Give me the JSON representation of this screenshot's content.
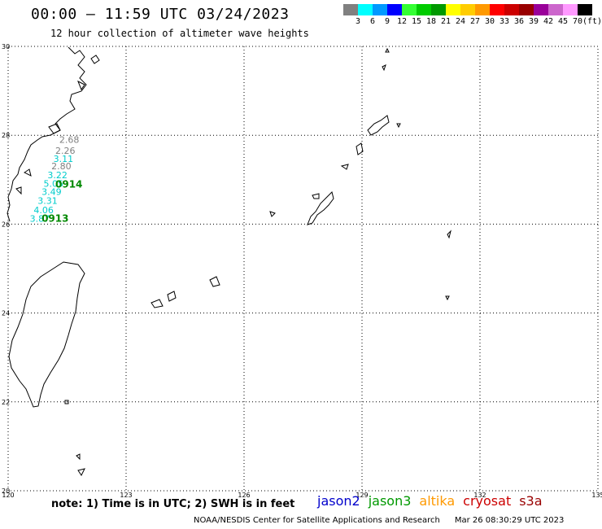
{
  "header": {
    "title": "00:00 – 11:59 UTC 03/24/2023",
    "subtitle": "12 hour collection of altimeter wave heights"
  },
  "colorbar": {
    "colors": [
      "#808080",
      "#00ffff",
      "#0099ff",
      "#0000ff",
      "#33ff33",
      "#00cc00",
      "#009900",
      "#ffff00",
      "#ffcc00",
      "#ff9900",
      "#ff0000",
      "#cc0000",
      "#990000",
      "#990099",
      "#cc66cc",
      "#ff99ff",
      "#000000"
    ],
    "labels": [
      "3",
      "6",
      "9",
      "12",
      "15",
      "18",
      "21",
      "24",
      "27",
      "30",
      "33",
      "36",
      "39",
      "42",
      "45",
      "70",
      "(ft)"
    ]
  },
  "map": {
    "lon_range": [
      120,
      135
    ],
    "lat_range": [
      20,
      30
    ],
    "lon_ticks": [
      "120",
      "123",
      "126",
      "129",
      "132",
      "135"
    ],
    "lat_ticks": [
      "20",
      "22",
      "24",
      "26",
      "28",
      "30"
    ],
    "grid": true
  },
  "wave_heights": [
    {
      "label": "2.68",
      "lon": 121.3,
      "lat": 27.83,
      "color": "#808080"
    },
    {
      "label": "2.26",
      "lon": 121.2,
      "lat": 27.58,
      "color": "#808080"
    },
    {
      "label": "3.11",
      "lon": 121.15,
      "lat": 27.4,
      "color": "#00cccc"
    },
    {
      "label": "2.80",
      "lon": 121.1,
      "lat": 27.23,
      "color": "#808080"
    },
    {
      "label": "3.22",
      "lon": 121.0,
      "lat": 27.03,
      "color": "#00cccc"
    },
    {
      "label": "5.05",
      "lon": 120.9,
      "lat": 26.84,
      "color": "#00cccc"
    },
    {
      "label": "3.49",
      "lon": 120.85,
      "lat": 26.66,
      "color": "#00cccc"
    },
    {
      "label": "3.31",
      "lon": 120.75,
      "lat": 26.46,
      "color": "#00cccc"
    },
    {
      "label": "4.06",
      "lon": 120.65,
      "lat": 26.25,
      "color": "#00cccc"
    },
    {
      "label": "3.87",
      "lon": 120.55,
      "lat": 26.05,
      "color": "#00cccc"
    }
  ],
  "passes": [
    {
      "label": "0914",
      "lon": 121.2,
      "lat": 26.82,
      "color": "#008800"
    },
    {
      "label": "0913",
      "lon": 120.85,
      "lat": 26.05,
      "color": "#008800"
    }
  ],
  "footer": {
    "note": "note: 1) Time is in UTC; 2) SWH is in feet",
    "credits": "NOAA/NESDIS Center for Satellite Applications and Research",
    "timestamp": "Mar 26 08:30:29 UTC 2023",
    "satellites": [
      {
        "name": "jason2",
        "color": "#0000cc"
      },
      {
        "name": "jason3",
        "color": "#009900"
      },
      {
        "name": "altika",
        "color": "#ff9900"
      },
      {
        "name": "cryosat",
        "color": "#cc0000"
      },
      {
        "name": "s3a",
        "color": "#990000"
      }
    ]
  }
}
